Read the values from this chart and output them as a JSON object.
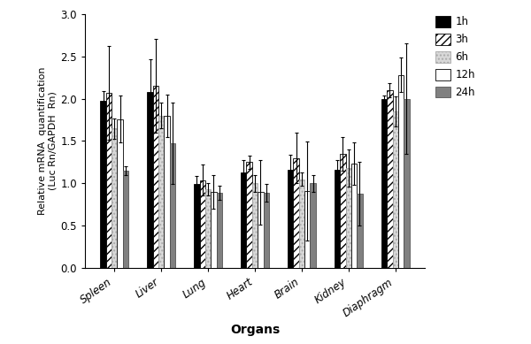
{
  "organs": [
    "Spleen",
    "Liver",
    "Lung",
    "Heart",
    "Brain",
    "Kidney",
    "Diaphragm"
  ],
  "times": [
    "1h",
    "3h",
    "6h",
    "12h",
    "24h"
  ],
  "values": {
    "1h": [
      1.97,
      2.08,
      0.99,
      1.13,
      1.16,
      1.16,
      1.99
    ],
    "3h": [
      2.07,
      2.15,
      1.04,
      1.25,
      1.3,
      1.35,
      2.1
    ],
    "6h": [
      1.65,
      1.8,
      0.93,
      1.0,
      1.05,
      1.18,
      1.85
    ],
    "12h": [
      1.76,
      1.8,
      0.9,
      0.9,
      0.91,
      1.23,
      2.28
    ],
    "24h": [
      1.15,
      1.47,
      0.89,
      0.89,
      1.0,
      0.88,
      2.0
    ]
  },
  "errors": {
    "1h": [
      0.12,
      0.38,
      0.1,
      0.15,
      0.18,
      0.12,
      0.05
    ],
    "3h": [
      0.55,
      0.55,
      0.18,
      0.08,
      0.3,
      0.2,
      0.08
    ],
    "6h": [
      0.12,
      0.15,
      0.07,
      0.1,
      0.08,
      0.22,
      0.18
    ],
    "12h": [
      0.28,
      0.25,
      0.2,
      0.38,
      0.58,
      0.25,
      0.2
    ],
    "24h": [
      0.05,
      0.48,
      0.08,
      0.1,
      0.1,
      0.38,
      0.65
    ]
  },
  "bar_styles": [
    {
      "color": "#000000",
      "hatch": "",
      "edgecolor": "#000000",
      "label": "1h"
    },
    {
      "color": "#000000",
      "hatch": "////",
      "edgecolor": "#000000",
      "facecolor_hatch": "#ffffff",
      "label": "3h"
    },
    {
      "color": "#d8d8d8",
      "hatch": "....",
      "edgecolor": "#aaaaaa",
      "label": "6h"
    },
    {
      "color": "#ffffff",
      "hatch": "",
      "edgecolor": "#000000",
      "label": "12h"
    },
    {
      "color": "#808080",
      "hatch": "",
      "edgecolor": "#555555",
      "label": "24h"
    }
  ],
  "ylabel": "Relative mRNA  quantification\n(Luc Rn/GAPDH  Rn)",
  "xlabel": "Organs",
  "ylim": [
    0,
    3.0
  ],
  "yticks": [
    0,
    0.5,
    1.0,
    1.5,
    2.0,
    2.5,
    3.0
  ],
  "bar_width": 0.12,
  "figsize": [
    6.0,
    3.89
  ],
  "dpi": 100
}
